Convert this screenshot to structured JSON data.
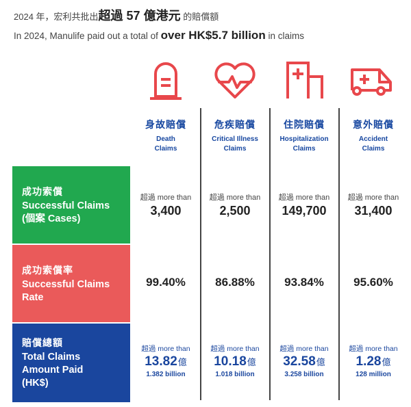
{
  "header": {
    "zh_pre": "2024 年，宏利共批出",
    "zh_bold": "超過 57 億港元",
    "zh_post": " 的賠償額",
    "en_pre": "In 2024, Manulife paid out a total of ",
    "en_bold": "over HK$5.7 billion",
    "en_post": " in claims"
  },
  "colors": {
    "accent_red": "#e8474b",
    "green": "#21a84f",
    "red": "#ea5a5a",
    "blue": "#1a469e"
  },
  "columns": [
    {
      "icon": "tombstone-icon",
      "zh": "身故賠償",
      "en1": "Death",
      "en2": "Claims"
    },
    {
      "icon": "heart-pulse-icon",
      "zh": "危疾賠償",
      "en1": "Critical Illness",
      "en2": "Claims"
    },
    {
      "icon": "hospital-icon",
      "zh": "住院賠償",
      "en1": "Hospitalization",
      "en2": "Claims"
    },
    {
      "icon": "ambulance-icon",
      "zh": "意外賠償",
      "en1": "Accident",
      "en2": "Claims"
    }
  ],
  "rows": [
    {
      "zh": "成功索償",
      "en1": "Successful Claims",
      "en2": "(個案 Cases)"
    },
    {
      "zh": "成功索償率",
      "en1": "Successful Claims",
      "en2": "Rate"
    },
    {
      "zh": "賠償總額",
      "en1": "Total Claims",
      "en2": "Amount Paid",
      "en3": "(HK$)"
    }
  ],
  "cases": {
    "more_than": "超過 more than",
    "values": [
      "3,400",
      "2,500",
      "149,700",
      "31,400"
    ]
  },
  "rates": [
    "99.40%",
    "86.88%",
    "93.84%",
    "95.60%"
  ],
  "amounts": {
    "more_than": "超過 more than",
    "unit": "億",
    "values": [
      "13.82",
      "10.18",
      "32.58",
      "1.28"
    ],
    "billions": [
      "1.382 billion",
      "1.018 billion",
      "3.258 billion",
      "128 million"
    ]
  }
}
